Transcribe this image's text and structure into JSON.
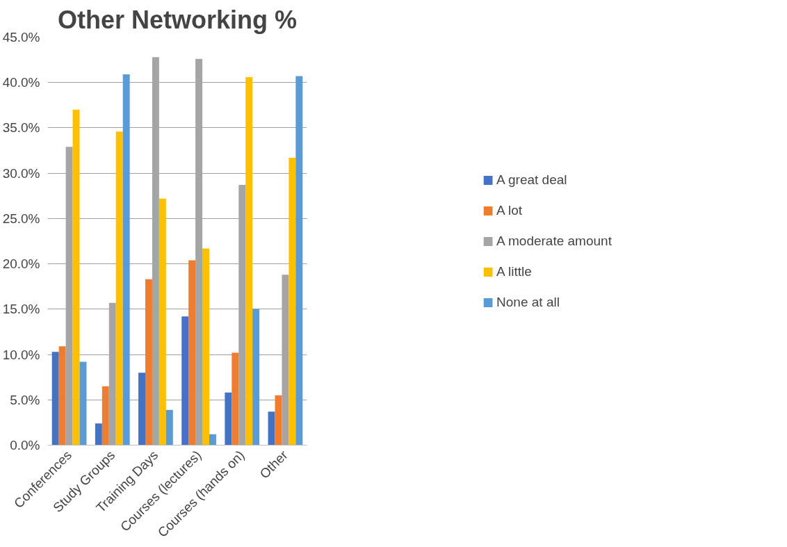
{
  "chart_data": {
    "type": "bar",
    "title": "Other Networking %",
    "categories": [
      "Conferences",
      "Study Groups",
      "Training Days",
      "Courses (lectures)",
      "Courses (hands on)",
      "Other"
    ],
    "series": [
      {
        "name": "A great deal",
        "color": "#4472c4",
        "values": [
          10.3,
          2.4,
          8.0,
          14.2,
          5.8,
          3.7
        ]
      },
      {
        "name": "A lot",
        "color": "#ed7d31",
        "values": [
          10.9,
          6.5,
          18.3,
          20.4,
          10.2,
          5.5
        ]
      },
      {
        "name": "A moderate amount",
        "color": "#a5a5a5",
        "values": [
          32.9,
          15.7,
          42.8,
          42.6,
          28.7,
          18.8
        ]
      },
      {
        "name": "A little",
        "color": "#ffc000",
        "values": [
          37.0,
          34.6,
          27.2,
          21.7,
          40.6,
          31.7
        ]
      },
      {
        "name": "None at all",
        "color": "#5b9bd5",
        "values": [
          9.2,
          40.9,
          3.9,
          1.2,
          15.0,
          40.7
        ]
      }
    ],
    "ylim": [
      0,
      45
    ],
    "yticks": [
      {
        "value": 0,
        "label": "0.0%"
      },
      {
        "value": 5,
        "label": "5.0%"
      },
      {
        "value": 10,
        "label": "10.0%"
      },
      {
        "value": 15,
        "label": "15.0%"
      },
      {
        "value": 20,
        "label": "20.0%"
      },
      {
        "value": 25,
        "label": "25.0%"
      },
      {
        "value": 30,
        "label": "30.0%"
      },
      {
        "value": 35,
        "label": "35.0%"
      },
      {
        "value": 40,
        "label": "40.0%"
      },
      {
        "value": 45,
        "label": "45.0%"
      }
    ],
    "grid": "y",
    "legend": "right"
  }
}
